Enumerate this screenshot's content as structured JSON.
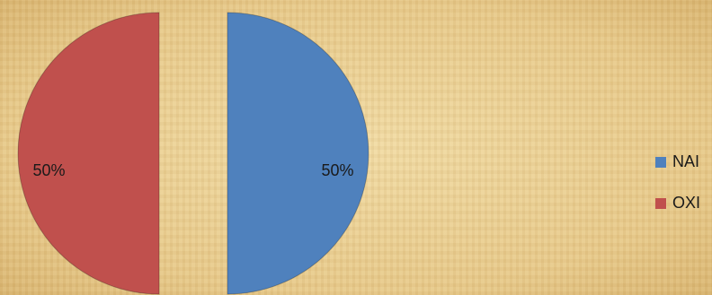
{
  "chart_data": {
    "type": "pie",
    "categories": [
      "NAI",
      "OXI"
    ],
    "values": [
      50,
      50
    ],
    "value_labels": [
      "50%",
      "50%"
    ],
    "colors": [
      "#4f81bd",
      "#c0504d"
    ],
    "legend": "right",
    "exploded": true
  }
}
